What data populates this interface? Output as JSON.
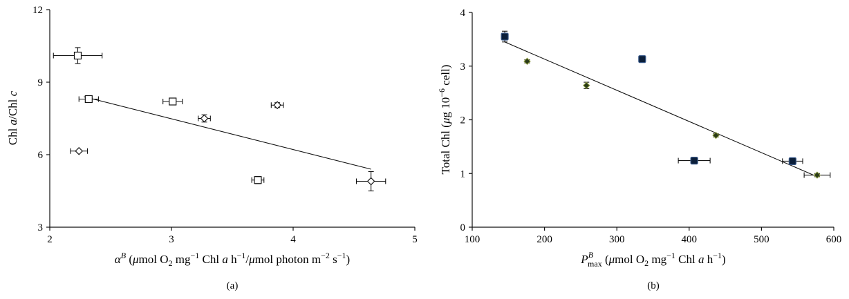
{
  "chart_data": [
    {
      "id": "a",
      "type": "scatter",
      "sublabel": "(a)",
      "ylabel_parts": [
        "Chl ",
        "a",
        "/Chl ",
        "c"
      ],
      "xlabel_parts": {
        "alpha": "α",
        "B": "B",
        "p1": " (",
        "mu1": "μ",
        "p2": "mol O",
        "sub2": "2",
        "p3": " mg",
        "exp1": "−1",
        "p4": " Chl ",
        "a": "a",
        "p5": " h",
        "exp2": "−1",
        "p6": "/",
        "mu2": "μ",
        "p7": "mol photon m",
        "exp3": "−2",
        "p8": " s",
        "exp4": "−1",
        "p9": ")"
      },
      "xlim": [
        2,
        5
      ],
      "ylim": [
        3,
        12
      ],
      "xticks": [
        2,
        3,
        4,
        5
      ],
      "yticks": [
        3,
        6,
        9,
        12
      ],
      "series": [
        {
          "marker": "square",
          "points": [
            {
              "x": 2.23,
              "y": 10.1,
              "xerr": 0.2,
              "yerr": 0.33
            },
            {
              "x": 2.32,
              "y": 8.3,
              "xerr": 0.08,
              "yerr": 0.12
            },
            {
              "x": 3.01,
              "y": 8.2,
              "xerr": 0.08,
              "yerr": 0.1
            },
            {
              "x": 3.71,
              "y": 4.95,
              "xerr": 0.05,
              "yerr": 0.15
            }
          ]
        },
        {
          "marker": "diamond",
          "points": [
            {
              "x": 2.24,
              "y": 6.15,
              "xerr": 0.07,
              "yerr": 0
            },
            {
              "x": 3.27,
              "y": 7.5,
              "xerr": 0.05,
              "yerr": 0.15
            },
            {
              "x": 3.87,
              "y": 8.05,
              "xerr": 0.05,
              "yerr": 0.1
            },
            {
              "x": 4.64,
              "y": 4.9,
              "xerr": 0.12,
              "yerr": 0.4
            }
          ]
        }
      ],
      "trendline": {
        "x": [
          2.28,
          4.64
        ],
        "y": [
          8.4,
          5.4
        ]
      }
    },
    {
      "id": "b",
      "type": "scatter",
      "sublabel": "(b)",
      "ylabel_parts": {
        "p1": "Total Chl (",
        "mu": "μ",
        "p2": "g 10",
        "exp": "−6",
        "p3": " cell)"
      },
      "xlabel_parts": {
        "P": "P",
        "sup": "B",
        "sub": "max",
        "p1": " (",
        "mu": "μ",
        "p2": "mol O",
        "sub2": "2",
        "p3": " mg",
        "exp1": "−1",
        "p4": " Chl ",
        "a": "a",
        "p5": " h",
        "exp2": "−1",
        "p6": ")"
      },
      "xlim": [
        100,
        600
      ],
      "ylim": [
        0,
        4
      ],
      "xticks": [
        100,
        200,
        300,
        400,
        500,
        600
      ],
      "yticks": [
        0,
        1,
        2,
        3,
        4
      ],
      "series": [
        {
          "marker": "square-filled",
          "color": "#0b1f3a",
          "points": [
            {
              "x": 145,
              "y": 3.55,
              "xerr": 0,
              "yerr": 0.1
            },
            {
              "x": 335,
              "y": 3.13,
              "xerr": 0,
              "yerr": 0.05
            },
            {
              "x": 407,
              "y": 1.24,
              "xerr": 22,
              "yerr": 0
            },
            {
              "x": 543,
              "y": 1.23,
              "xerr": 14,
              "yerr": 0
            }
          ]
        },
        {
          "marker": "diamond-filled",
          "color": "#2a3a1a",
          "points": [
            {
              "x": 176,
              "y": 3.09,
              "xerr": 0,
              "yerr": 0.03
            },
            {
              "x": 258,
              "y": 2.64,
              "xerr": 0,
              "yerr": 0.06
            },
            {
              "x": 437,
              "y": 1.71,
              "xerr": 0,
              "yerr": 0.03
            },
            {
              "x": 577,
              "y": 0.97,
              "xerr": 18,
              "yerr": 0.03
            }
          ]
        }
      ],
      "trendline": {
        "x": [
          145,
          572
        ],
        "y": [
          3.45,
          0.97
        ]
      }
    }
  ]
}
